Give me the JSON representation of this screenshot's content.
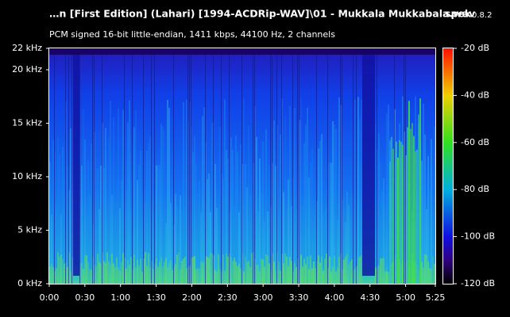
{
  "chart_data": {
    "type": "spectrogram",
    "title": "…n [First Edition] (Lahari) [1994-ACDRip-WAV]\\01 - Mukkala Mukkabala.wav",
    "app_name": "spek",
    "app_version": "0.8.2",
    "subtitle": "PCM signed 16-bit little-endian, 1411 kbps, 44100 Hz, 2 channels",
    "xlim": [
      0,
      325
    ],
    "xticks": [
      {
        "value": 0,
        "label": "0:00"
      },
      {
        "value": 30,
        "label": "0:30"
      },
      {
        "value": 60,
        "label": "1:00"
      },
      {
        "value": 90,
        "label": "1:30"
      },
      {
        "value": 120,
        "label": "2:00"
      },
      {
        "value": 150,
        "label": "2:30"
      },
      {
        "value": 180,
        "label": "3:00"
      },
      {
        "value": 210,
        "label": "3:30"
      },
      {
        "value": 240,
        "label": "4:00"
      },
      {
        "value": 270,
        "label": "4:30"
      },
      {
        "value": 300,
        "label": "5:00"
      },
      {
        "value": 325,
        "label": "5:25"
      }
    ],
    "ylim": [
      0,
      22
    ],
    "yticks": [
      {
        "value": 0,
        "label": "0 kHz"
      },
      {
        "value": 5,
        "label": "5 kHz"
      },
      {
        "value": 10,
        "label": "10 kHz"
      },
      {
        "value": 15,
        "label": "15 kHz"
      },
      {
        "value": 20,
        "label": "20 kHz"
      },
      {
        "value": 22,
        "label": "22 kHz"
      }
    ],
    "colorbar": {
      "lim": [
        -120,
        -20
      ],
      "ticks": [
        {
          "value": -20,
          "label": "-20 dB"
        },
        {
          "value": -40,
          "label": "-40 dB"
        },
        {
          "value": -60,
          "label": "-60 dB"
        },
        {
          "value": -80,
          "label": "-80 dB"
        },
        {
          "value": -100,
          "label": "-100 dB"
        },
        {
          "value": -120,
          "label": "-120 dB"
        }
      ]
    }
  }
}
